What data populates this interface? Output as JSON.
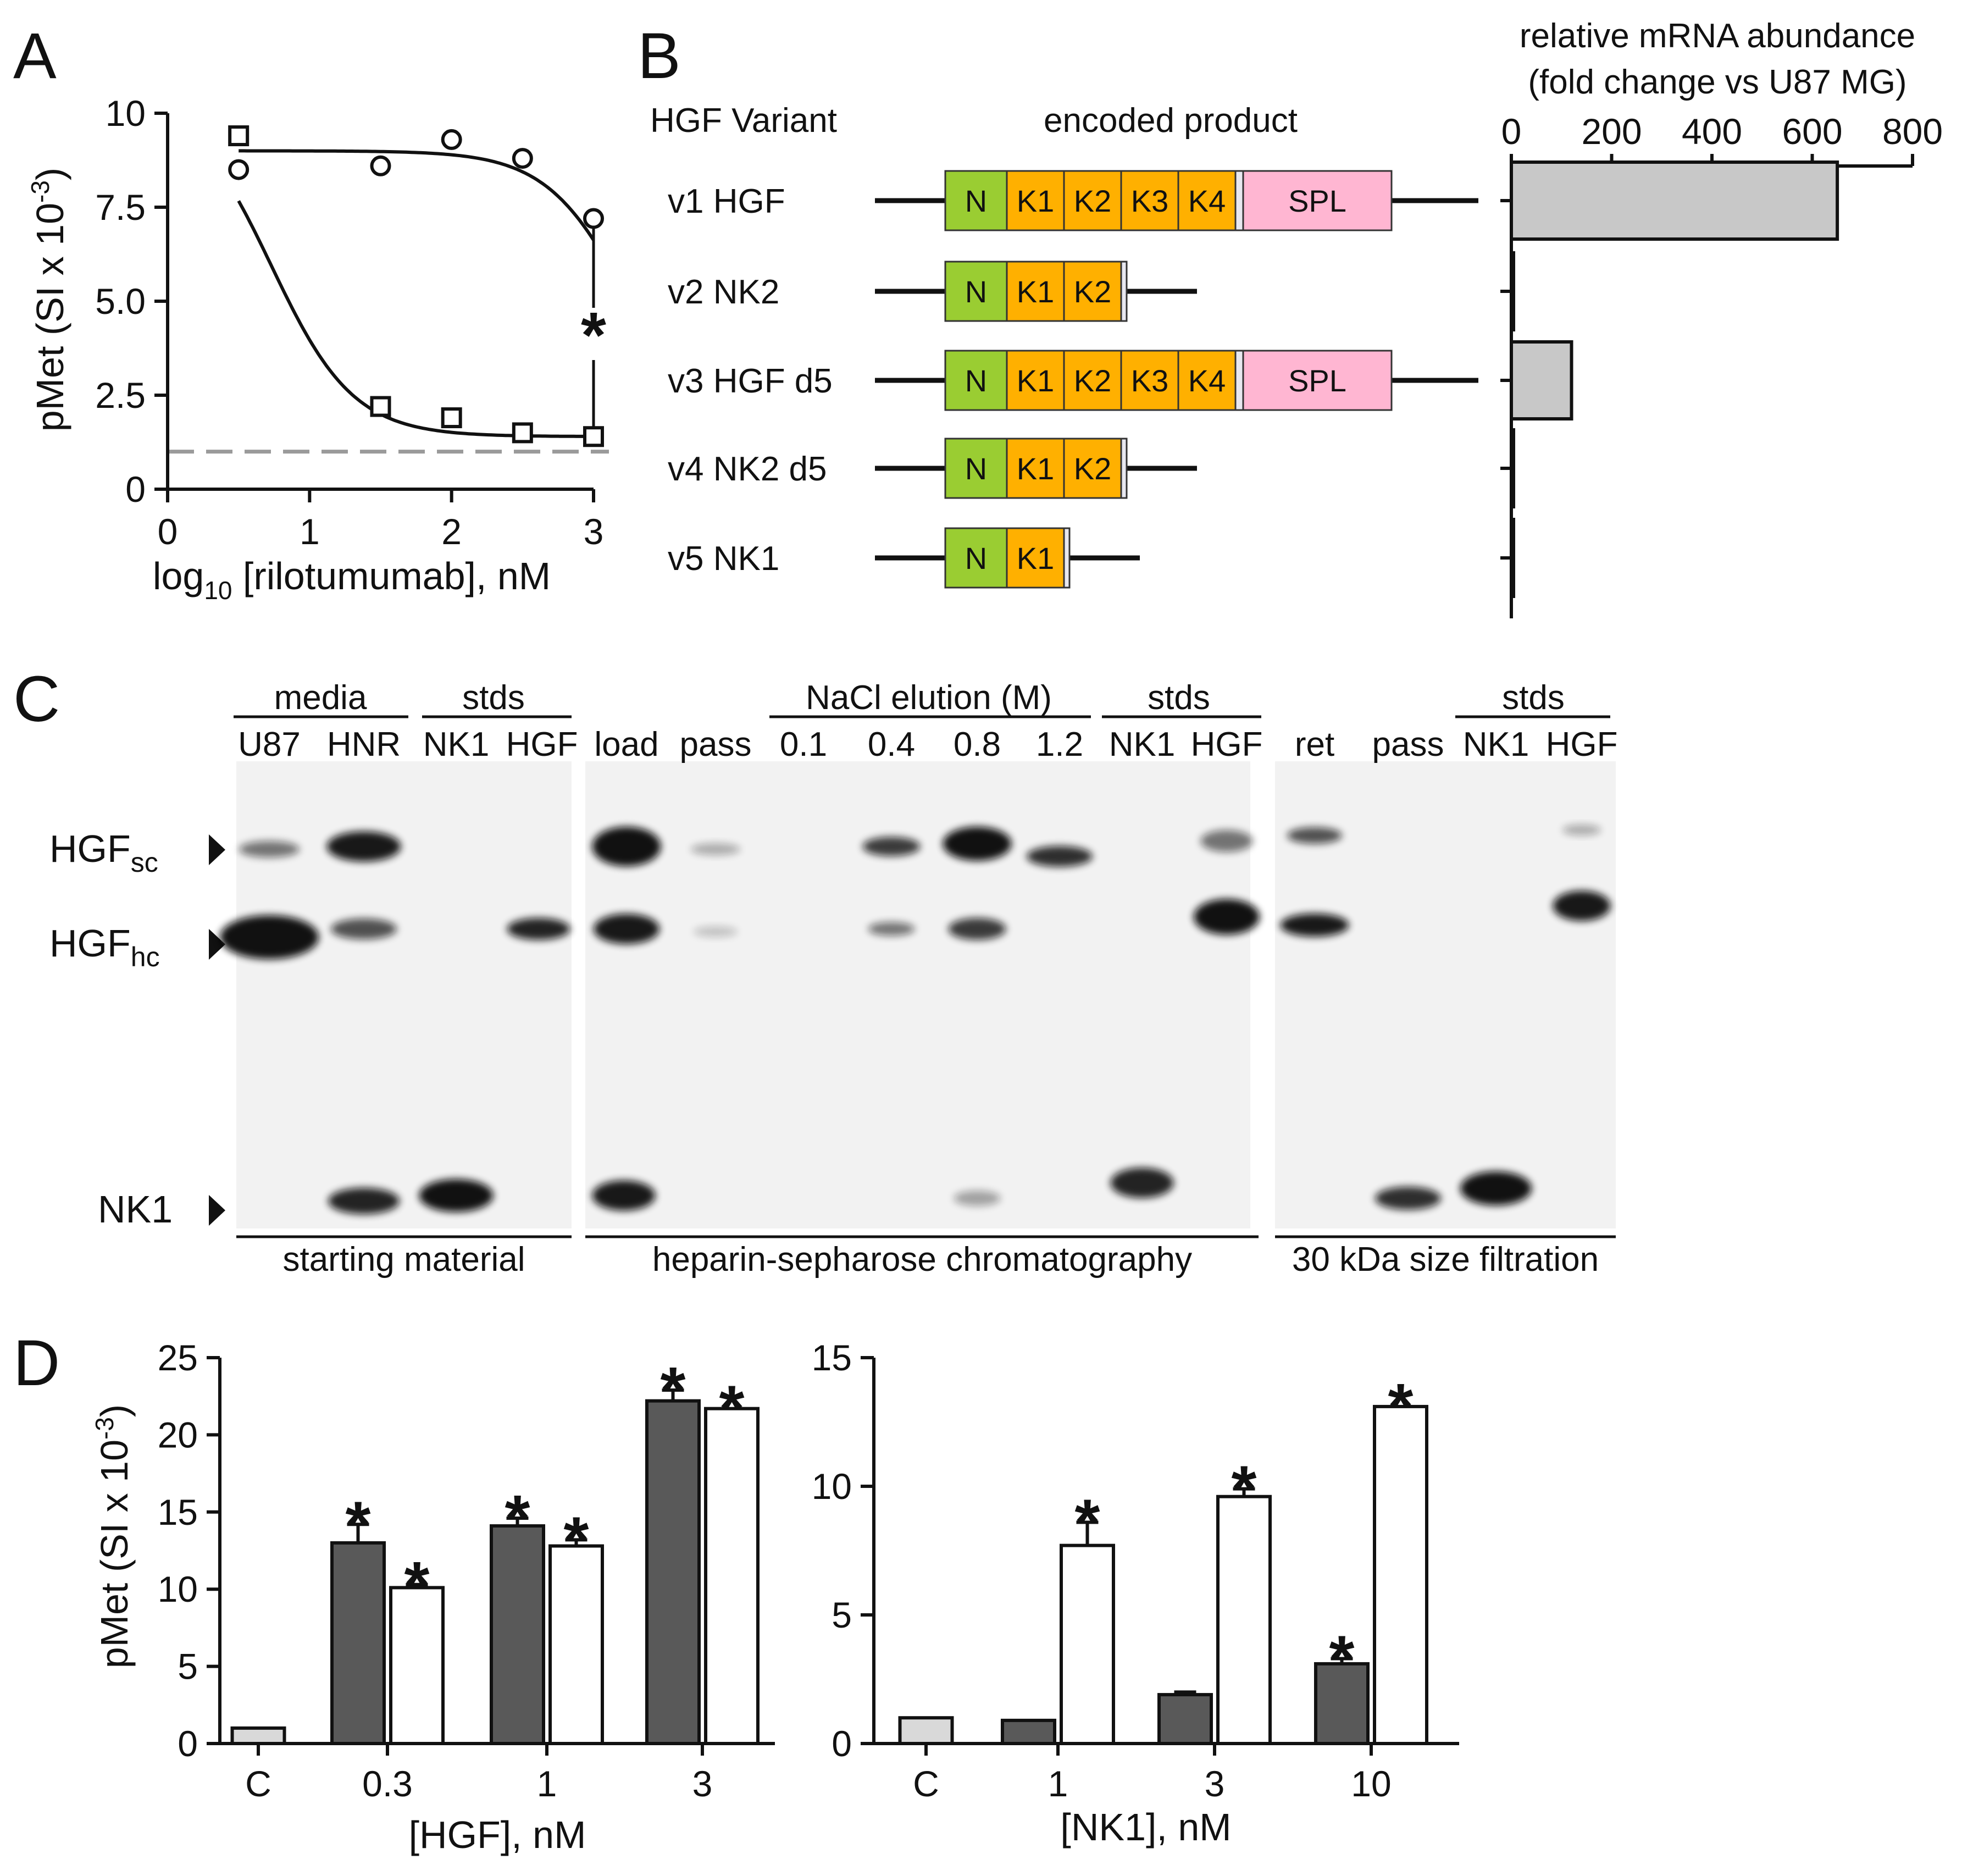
{
  "panels": {
    "a": "A",
    "b": "B",
    "c": "C",
    "d": "D"
  },
  "colors": {
    "axis": "#111111",
    "baseline": "#9a9a9a",
    "bar_gray": "#c8c8c8",
    "bar_dark": "#595959",
    "bar_light": "#d9d9d9",
    "domain_N": "#9acd32",
    "domain_K": "#ffb000",
    "domain_SPL": "#ffb6d2"
  },
  "chart_data": [
    {
      "id": "A",
      "type": "scatter",
      "xlabel": "log10 [rilotumumab], nM",
      "xlabel_parts": {
        "base": "log",
        "sub": "10",
        "rest": " [rilotumumab], nM"
      },
      "ylabel": "pMet (SI x 10-3)",
      "ylabel_parts": {
        "main": "pMet (SI x 10",
        "sup": "-3",
        "close": ")"
      },
      "xlim": [
        0,
        3
      ],
      "ylim": [
        0,
        10
      ],
      "xticks": [
        "0",
        "1",
        "2",
        "3"
      ],
      "yticks": [
        "0",
        "2.5",
        "5.0",
        "7.5",
        "10"
      ],
      "baseline_value": 1.0,
      "annotation": "*",
      "series": [
        {
          "name": "circles",
          "marker": "circle",
          "x": [
            0.5,
            1.5,
            2.0,
            2.5,
            3.0
          ],
          "y": [
            8.5,
            8.6,
            9.3,
            8.8,
            7.2
          ],
          "fit": {
            "top": 9.0,
            "bottom": 1.0,
            "ec50": 3.25,
            "hill": 1.5
          }
        },
        {
          "name": "squares",
          "marker": "square",
          "x": [
            0.5,
            1.5,
            2.0,
            2.5,
            3.0
          ],
          "y": [
            9.4,
            2.2,
            1.9,
            1.5,
            1.4
          ],
          "fit": {
            "top": 10.5,
            "bottom": 1.4,
            "ec50": 0.73,
            "hill": 1.5
          }
        }
      ]
    },
    {
      "id": "B",
      "type": "bar",
      "orientation": "horizontal",
      "title": "relative mRNA abundance",
      "subtitle": "(fold change vs U87 MG)",
      "xlim": [
        0,
        800
      ],
      "xticks": [
        "0",
        "200",
        "400",
        "600",
        "800"
      ],
      "categories": [
        "v1 HGF",
        "v2 NK2",
        "v3 HGF d5",
        "v4 NK2 d5",
        "v5 NK1"
      ],
      "values": [
        650,
        4,
        120,
        4,
        3
      ]
    },
    {
      "id": "D-left",
      "type": "bar",
      "xlabel": "[HGF], nM",
      "ylabel": "pMet (SI x 10-3)",
      "ylim": [
        0,
        25
      ],
      "yticks": [
        "0",
        "5",
        "10",
        "15",
        "20",
        "25"
      ],
      "categories": [
        "C",
        "0.3",
        "1",
        "3"
      ],
      "bars": [
        {
          "group": "C",
          "series": "control",
          "value": 1.0,
          "err": 0,
          "sig": false
        },
        {
          "group": "0.3",
          "series": "dark",
          "value": 13.0,
          "err": 1.2,
          "sig": true
        },
        {
          "group": "0.3",
          "series": "open",
          "value": 10.1,
          "err": 0.2,
          "sig": true
        },
        {
          "group": "1",
          "series": "dark",
          "value": 14.1,
          "err": 0.5,
          "sig": true
        },
        {
          "group": "1",
          "series": "open",
          "value": 12.8,
          "err": 0.4,
          "sig": true
        },
        {
          "group": "3",
          "series": "dark",
          "value": 22.2,
          "err": 0.7,
          "sig": true
        },
        {
          "group": "3",
          "series": "open",
          "value": 21.7,
          "err": 0,
          "sig": true
        }
      ]
    },
    {
      "id": "D-right",
      "type": "bar",
      "xlabel": "[NK1], nM",
      "ylim": [
        0,
        15
      ],
      "yticks": [
        "0",
        "5",
        "10",
        "15"
      ],
      "categories": [
        "C",
        "1",
        "3",
        "10"
      ],
      "bars": [
        {
          "group": "C",
          "series": "control",
          "value": 1.0,
          "err": 0,
          "sig": false
        },
        {
          "group": "1",
          "series": "dark",
          "value": 0.9,
          "err": 0,
          "sig": false
        },
        {
          "group": "1",
          "series": "open",
          "value": 7.7,
          "err": 0.9,
          "sig": true
        },
        {
          "group": "3",
          "series": "dark",
          "value": 1.9,
          "err": 0.1,
          "sig": false
        },
        {
          "group": "3",
          "series": "open",
          "value": 9.6,
          "err": 0.3,
          "sig": true
        },
        {
          "group": "10",
          "series": "dark",
          "value": 3.1,
          "err": 0.2,
          "sig": true
        },
        {
          "group": "10",
          "series": "open",
          "value": 13.1,
          "err": 0,
          "sig": true
        }
      ]
    }
  ],
  "panel_b": {
    "col_variant": "HGF Variant",
    "col_product": "encoded product",
    "variants": [
      {
        "label": "v1  HGF",
        "domains": [
          "N",
          "K1",
          "K2",
          "K3",
          "K4",
          "SPL"
        ]
      },
      {
        "label": "v2  NK2",
        "domains": [
          "N",
          "K1",
          "K2"
        ]
      },
      {
        "label": "v3  HGF d5",
        "domains": [
          "N",
          "K1",
          "K2",
          "K3",
          "K4",
          "SPL"
        ]
      },
      {
        "label": "v4  NK2 d5",
        "domains": [
          "N",
          "K1",
          "K2"
        ]
      },
      {
        "label": "v5  NK1",
        "domains": [
          "N",
          "K1"
        ]
      }
    ]
  },
  "panel_c": {
    "groups": {
      "media": "media",
      "stds1": "stds",
      "nacl": "NaCl elution (M)",
      "stds2": "stds",
      "stds3": "stds"
    },
    "lanes": [
      "U87",
      "HNR",
      "NK1",
      "HGF",
      "load",
      "pass",
      "0.1",
      "0.4",
      "0.8",
      "1.2",
      "NK1",
      "HGF",
      "ret",
      "pass",
      "NK1",
      "HGF"
    ],
    "markers": [
      {
        "base": "HGF",
        "sub": "sc"
      },
      {
        "base": "HGF",
        "sub": "hc"
      },
      {
        "base": "NK1",
        "sub": ""
      }
    ],
    "sections": [
      "starting material",
      "heparin-sepharose chromatography",
      "30 kDa size filtration"
    ]
  }
}
